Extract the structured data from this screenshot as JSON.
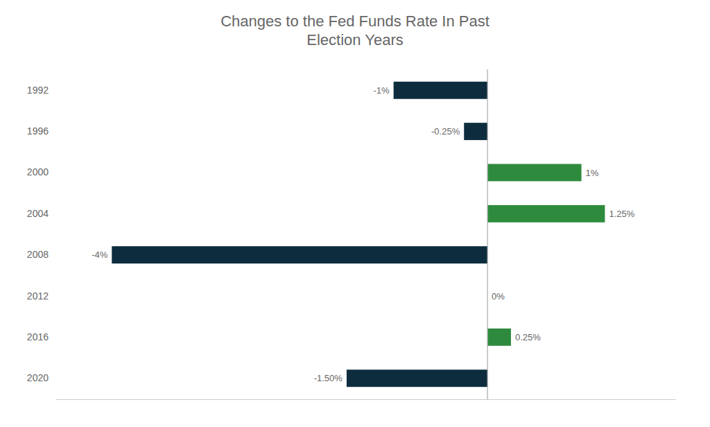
{
  "chart_data": {
    "type": "bar",
    "orientation": "horizontal",
    "title": "Changes to the Fed Funds Rate In Past\nElection Years",
    "categories": [
      "1992",
      "1996",
      "2000",
      "2004",
      "2008",
      "2012",
      "2016",
      "2020"
    ],
    "values": [
      -1.0,
      -0.25,
      1.0,
      1.25,
      -4.0,
      0.0,
      0.25,
      -1.5
    ],
    "value_labels": [
      "-1%",
      "-0.25%",
      "1%",
      "1.25%",
      "-4%",
      "0%",
      "0.25%",
      "-1.50%"
    ],
    "colors": [
      "#0d2d3e",
      "#0d2d3e",
      "#2e8b3e",
      "#2e8b3e",
      "#0d2d3e",
      "#0d2d3e",
      "#2e8b3e",
      "#0d2d3e"
    ],
    "xlim": [
      -4.6,
      2.0
    ],
    "data_labels": true,
    "tick_labels": "y",
    "grid": false
  }
}
